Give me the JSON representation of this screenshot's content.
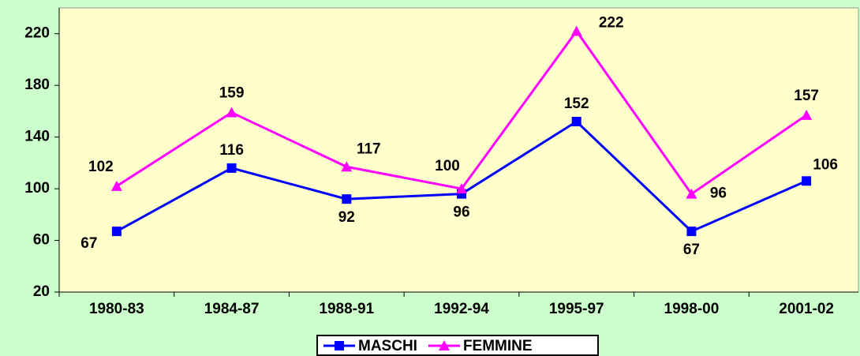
{
  "chart_data": {
    "type": "line",
    "categories": [
      "1980-83",
      "1984-87",
      "1988-91",
      "1992-94",
      "1995-97",
      "1998-00",
      "2001-02"
    ],
    "series": [
      {
        "name": "MASCHI",
        "color": "#0000ff",
        "marker": "square",
        "values": [
          67,
          116,
          92,
          96,
          152,
          67,
          106
        ]
      },
      {
        "name": "FEMMINE",
        "color": "#ff00ff",
        "marker": "triangle",
        "values": [
          102,
          159,
          117,
          100,
          222,
          96,
          157
        ],
        "label_colors": [
          "#000000",
          "#000000",
          "#000000",
          "#000000",
          "#ff0000",
          "#000000",
          "#000000"
        ]
      }
    ],
    "ylim": [
      20,
      240
    ],
    "yticks": [
      20,
      60,
      100,
      140,
      180,
      220
    ],
    "grid": false,
    "legend": "bottom"
  }
}
